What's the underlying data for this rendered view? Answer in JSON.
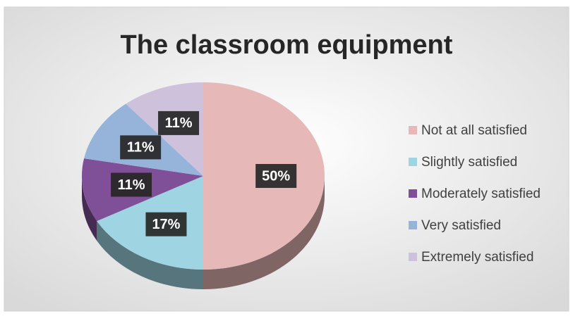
{
  "chart_data": {
    "type": "pie",
    "title": "The classroom equipment",
    "categories": [
      "Not at all satisfied",
      "Slightly satisfied",
      "Moderately satisfied",
      "Very satisfied",
      "Extremely satisfied"
    ],
    "values": [
      50,
      17,
      11,
      11,
      11
    ],
    "value_labels": [
      "50%",
      "17%",
      "11%",
      "11%",
      "11%"
    ],
    "colors": [
      "#e6b9b8",
      "#9fd5e3",
      "#7f4f97",
      "#96b4da",
      "#cdc1dc"
    ],
    "legend": "right"
  }
}
